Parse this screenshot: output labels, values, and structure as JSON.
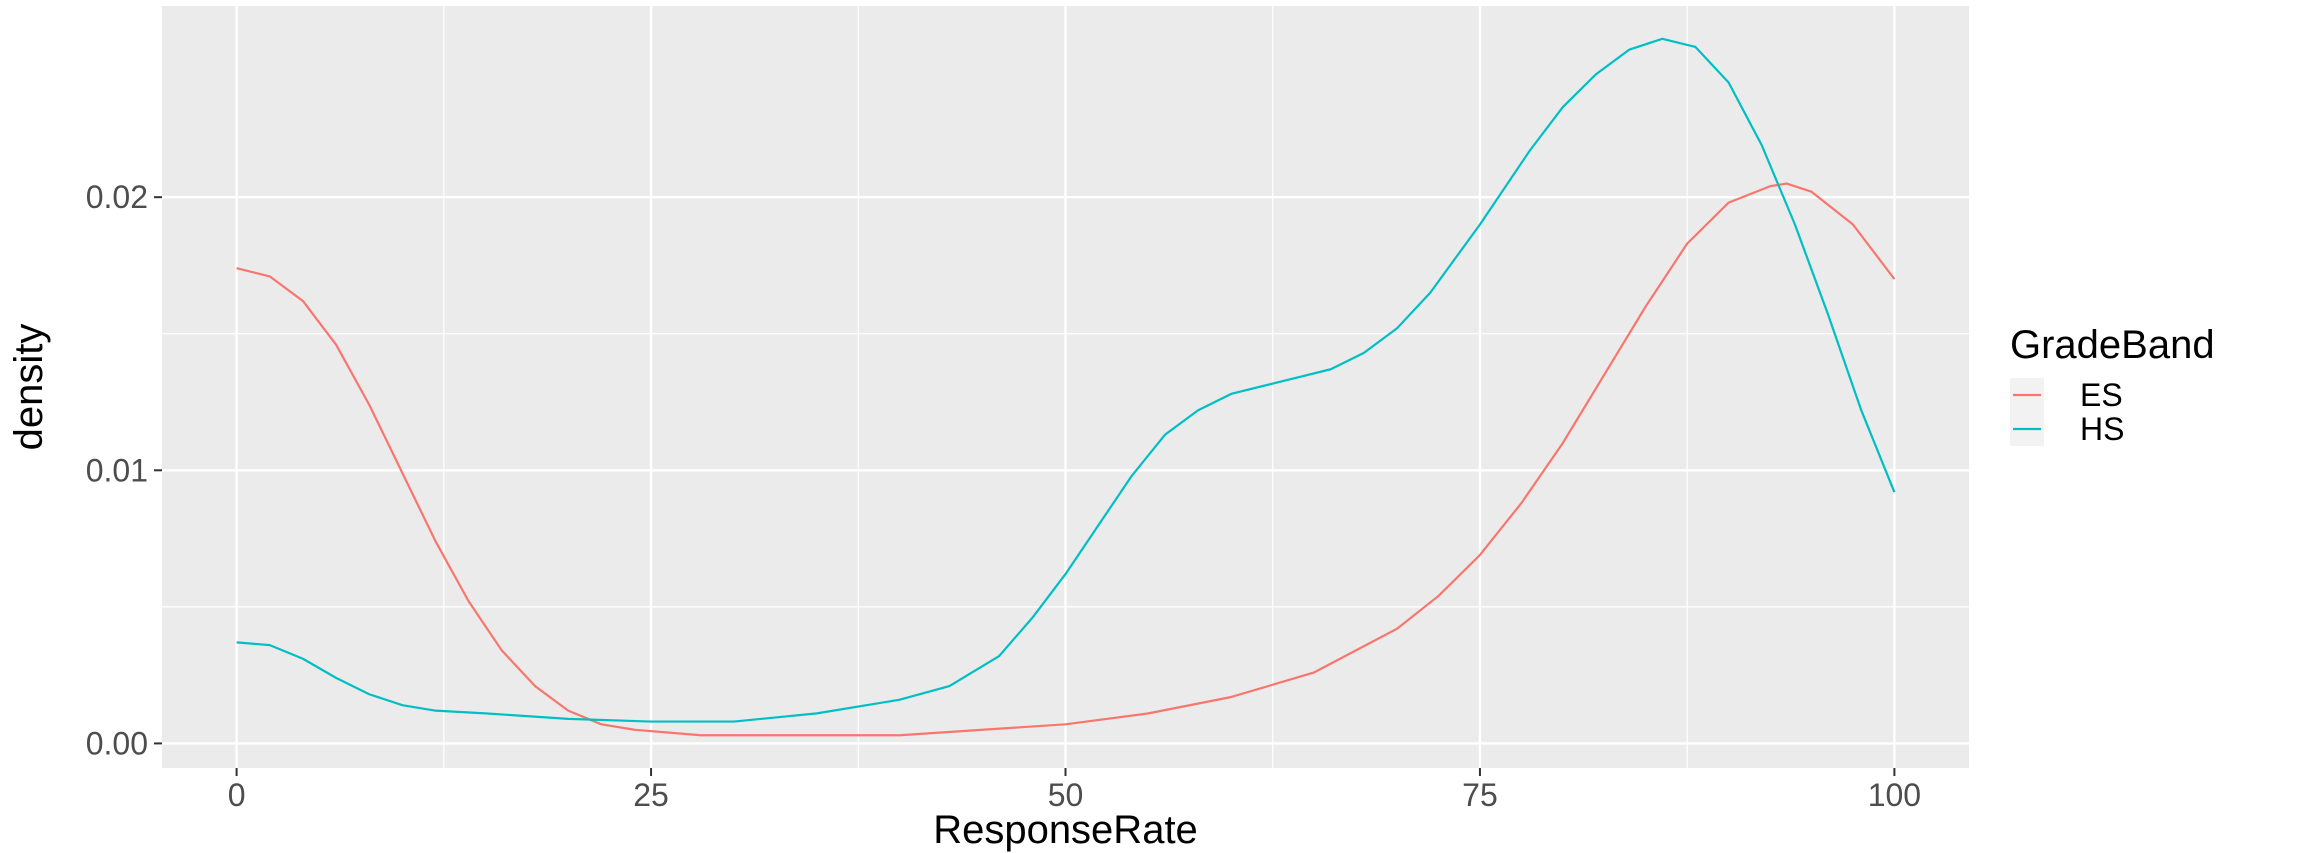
{
  "chart_data": {
    "type": "line",
    "title": "",
    "xlabel": "ResponseRate",
    "ylabel": "density",
    "xlim": [
      -4.5,
      104.5
    ],
    "ylim": [
      -0.0009,
      0.027
    ],
    "x_ticks": [
      0,
      25,
      50,
      75,
      100
    ],
    "x_tick_labels": [
      "0",
      "25",
      "50",
      "75",
      "100"
    ],
    "y_ticks": [
      0.0,
      0.01,
      0.02
    ],
    "y_tick_labels": [
      "0.00",
      "0.01",
      "0.02"
    ],
    "grid": true,
    "legend": {
      "title": "GradeBand",
      "position": "right"
    },
    "series": [
      {
        "name": "ES",
        "color": "#F8766D",
        "x": [
          0,
          2,
          4,
          6,
          8,
          10,
          12,
          14,
          16,
          18,
          20,
          22,
          24,
          26,
          28,
          30,
          35,
          40,
          45,
          50,
          55,
          60,
          65,
          70,
          72.5,
          75,
          77.5,
          80,
          82.5,
          85,
          87.5,
          90,
          92.5,
          93.5,
          95,
          97.5,
          100
        ],
        "y": [
          0.0174,
          0.0171,
          0.0162,
          0.0146,
          0.0124,
          0.0099,
          0.0074,
          0.0052,
          0.0034,
          0.0021,
          0.0012,
          0.0007,
          0.0005,
          0.0004,
          0.0003,
          0.0003,
          0.0003,
          0.0003,
          0.0005,
          0.0007,
          0.0011,
          0.0017,
          0.0026,
          0.0042,
          0.0054,
          0.0069,
          0.0088,
          0.011,
          0.0135,
          0.016,
          0.0183,
          0.0198,
          0.0204,
          0.0205,
          0.0202,
          0.019,
          0.017
        ]
      },
      {
        "name": "HS",
        "color": "#00BFC4",
        "x": [
          0,
          2,
          4,
          6,
          8,
          10,
          12,
          15,
          20,
          25,
          30,
          35,
          40,
          43,
          46,
          48,
          50,
          52,
          54,
          56,
          58,
          60,
          62,
          64,
          66,
          68,
          70,
          72,
          75,
          78,
          80,
          82,
          84,
          86,
          88,
          90,
          92,
          94,
          96,
          98,
          100
        ],
        "y": [
          0.0037,
          0.0036,
          0.0031,
          0.0024,
          0.0018,
          0.0014,
          0.0012,
          0.0011,
          0.0009,
          0.0008,
          0.0008,
          0.0011,
          0.0016,
          0.0021,
          0.0032,
          0.0046,
          0.0062,
          0.008,
          0.0098,
          0.0113,
          0.0122,
          0.0128,
          0.0131,
          0.0134,
          0.0137,
          0.0143,
          0.0152,
          0.0165,
          0.019,
          0.0217,
          0.0233,
          0.0245,
          0.0254,
          0.0258,
          0.0255,
          0.0242,
          0.0219,
          0.019,
          0.0157,
          0.0122,
          0.0092
        ]
      }
    ]
  }
}
